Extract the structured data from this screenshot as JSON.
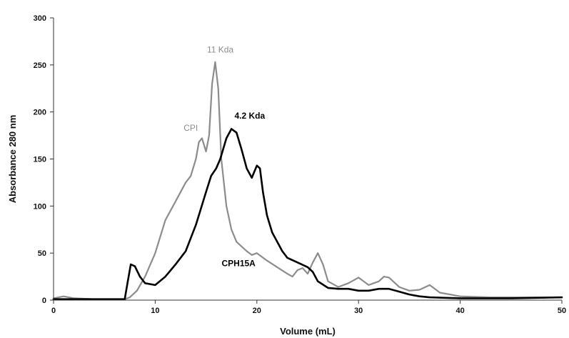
{
  "chart_data": {
    "type": "line",
    "xlabel": "Volume (mL)",
    "ylabel": "Absorbance 280 nm",
    "xlim": [
      0,
      50
    ],
    "ylim": [
      0,
      300
    ],
    "x_ticks": [
      0,
      10,
      20,
      30,
      40,
      50
    ],
    "y_ticks": [
      0,
      50,
      100,
      150,
      200,
      250,
      300
    ],
    "x_tick_labels": [
      "0",
      "10",
      "20",
      "30",
      "40",
      "50"
    ],
    "y_tick_labels": [
      "0",
      "50",
      "100",
      "150",
      "200",
      "250",
      "300"
    ],
    "grid": false,
    "legend": "none",
    "series": [
      {
        "name": "CPI",
        "color": "#8c8c8c",
        "points": [
          [
            0,
            2
          ],
          [
            1,
            4
          ],
          [
            2,
            2
          ],
          [
            4,
            1
          ],
          [
            6,
            1
          ],
          [
            7,
            1
          ],
          [
            7.5,
            3
          ],
          [
            8.2,
            10
          ],
          [
            9,
            25
          ],
          [
            10,
            50
          ],
          [
            11,
            85
          ],
          [
            12,
            105
          ],
          [
            13,
            125
          ],
          [
            13.5,
            132
          ],
          [
            14,
            150
          ],
          [
            14.3,
            168
          ],
          [
            14.6,
            172
          ],
          [
            15,
            158
          ],
          [
            15.3,
            175
          ],
          [
            15.6,
            230
          ],
          [
            15.9,
            253
          ],
          [
            16.2,
            225
          ],
          [
            16.5,
            150
          ],
          [
            17,
            100
          ],
          [
            17.5,
            75
          ],
          [
            18,
            62
          ],
          [
            19,
            52
          ],
          [
            19.5,
            48
          ],
          [
            20,
            50
          ],
          [
            21,
            42
          ],
          [
            22,
            35
          ],
          [
            23,
            28
          ],
          [
            23.5,
            25
          ],
          [
            24,
            32
          ],
          [
            24.5,
            34
          ],
          [
            25,
            28
          ],
          [
            25.5,
            40
          ],
          [
            26,
            50
          ],
          [
            26.5,
            38
          ],
          [
            27,
            20
          ],
          [
            28,
            14
          ],
          [
            29,
            18
          ],
          [
            30,
            24
          ],
          [
            31,
            16
          ],
          [
            32,
            20
          ],
          [
            32.5,
            25
          ],
          [
            33,
            24
          ],
          [
            34,
            14
          ],
          [
            35,
            10
          ],
          [
            36,
            11
          ],
          [
            37,
            16
          ],
          [
            38,
            8
          ],
          [
            40,
            4
          ],
          [
            43,
            3
          ],
          [
            46,
            3
          ],
          [
            50,
            3
          ]
        ]
      },
      {
        "name": "CPH15A",
        "color": "#000000",
        "points": [
          [
            0,
            1
          ],
          [
            3,
            1
          ],
          [
            6,
            1
          ],
          [
            7,
            1
          ],
          [
            7.3,
            20
          ],
          [
            7.6,
            38
          ],
          [
            8,
            36
          ],
          [
            8.5,
            25
          ],
          [
            9,
            18
          ],
          [
            10,
            16
          ],
          [
            11,
            25
          ],
          [
            12,
            38
          ],
          [
            13,
            52
          ],
          [
            14,
            80
          ],
          [
            15,
            115
          ],
          [
            15.5,
            132
          ],
          [
            16,
            140
          ],
          [
            16.4,
            150
          ],
          [
            17,
            172
          ],
          [
            17.5,
            182
          ],
          [
            18,
            178
          ],
          [
            18.5,
            160
          ],
          [
            19,
            140
          ],
          [
            19.5,
            130
          ],
          [
            20,
            143
          ],
          [
            20.3,
            140
          ],
          [
            20.6,
            115
          ],
          [
            21,
            90
          ],
          [
            21.5,
            72
          ],
          [
            22,
            62
          ],
          [
            22.5,
            52
          ],
          [
            23,
            45
          ],
          [
            24,
            40
          ],
          [
            25,
            35
          ],
          [
            25.5,
            30
          ],
          [
            26,
            20
          ],
          [
            27,
            13
          ],
          [
            28,
            12
          ],
          [
            29,
            12
          ],
          [
            30,
            10
          ],
          [
            31,
            10
          ],
          [
            32,
            12
          ],
          [
            33,
            12
          ],
          [
            34,
            9
          ],
          [
            35,
            6
          ],
          [
            36,
            4
          ],
          [
            37,
            3
          ],
          [
            40,
            2
          ],
          [
            45,
            2
          ],
          [
            50,
            3
          ]
        ]
      }
    ],
    "annotations": [
      {
        "text": "11 Kda",
        "x": 16.4,
        "y": 263,
        "color": "#8c8c8c"
      },
      {
        "text": "4.2 Kda",
        "x": 19.3,
        "y": 193,
        "color": "#000000"
      },
      {
        "text": "CPI",
        "x": 13.5,
        "y": 180,
        "color": "#8c8c8c"
      },
      {
        "text": "CPH15A",
        "x": 18.2,
        "y": 36,
        "color": "#000000"
      }
    ]
  }
}
